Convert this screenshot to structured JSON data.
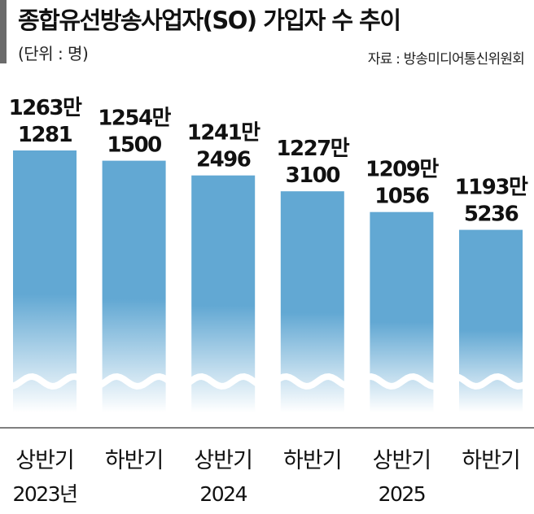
{
  "header": {
    "title": "종합유선방송사업자(SO) 가입자 수 추이",
    "unit": "(단위 : 명)",
    "source": "자료 : 방송미디어통신위원회"
  },
  "colors": {
    "bar_top": "#62a8d3",
    "bar_fade": "#ffffff",
    "accent": "#6b6b6b"
  },
  "chart_data": {
    "type": "bar",
    "title": "종합유선방송사업자(SO) 가입자 수 추이",
    "unit": "(단위 : 명)",
    "categories": [
      "상반기 2023년",
      "하반기 2023년",
      "상반기 2024",
      "하반기 2024",
      "상반기 2025",
      "하반기 2025"
    ],
    "periods": [
      "상반기",
      "하반기",
      "상반기",
      "하반기",
      "상반기",
      "하반기"
    ],
    "years": [
      "2023년",
      "",
      "2024",
      "",
      "2025",
      ""
    ],
    "values": [
      12631281,
      12541500,
      12412496,
      12273100,
      12091056,
      11935236
    ],
    "value_labels": [
      [
        "1263만",
        "1281"
      ],
      [
        "1254만",
        "1500"
      ],
      [
        "1241만",
        "2496"
      ],
      [
        "1227만",
        "3100"
      ],
      [
        "1209만",
        "1056"
      ],
      [
        "1193만",
        "5236"
      ]
    ],
    "axis_break": true,
    "grid": false,
    "legend": "none"
  }
}
